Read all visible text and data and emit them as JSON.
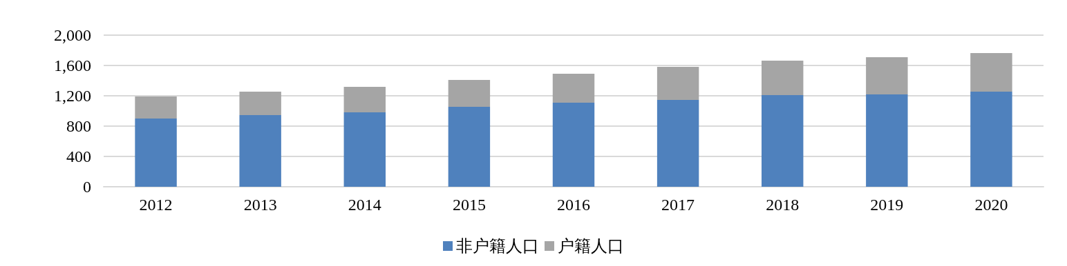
{
  "chart_data": {
    "type": "bar",
    "stacked": true,
    "categories": [
      "2012",
      "2013",
      "2014",
      "2015",
      "2016",
      "2017",
      "2018",
      "2019",
      "2020"
    ],
    "series": [
      {
        "name": "非户籍人口",
        "color": "#4f81bd",
        "values": [
          900,
          945,
          982,
          1055,
          1109,
          1145,
          1209,
          1218,
          1255
        ]
      },
      {
        "name": "户籍人口",
        "color": "#a5a5a5",
        "values": [
          291,
          310,
          336,
          355,
          382,
          437,
          455,
          491,
          509
        ]
      }
    ],
    "ylim": [
      0,
      2000
    ],
    "yticks": [
      0,
      400,
      800,
      {
        "value": 1200,
        "label": "1,200"
      },
      {
        "value": 1600,
        "label": "1,600"
      },
      {
        "value": 2000,
        "label": "2,000"
      }
    ],
    "grid": "y",
    "legend": "bottom"
  }
}
